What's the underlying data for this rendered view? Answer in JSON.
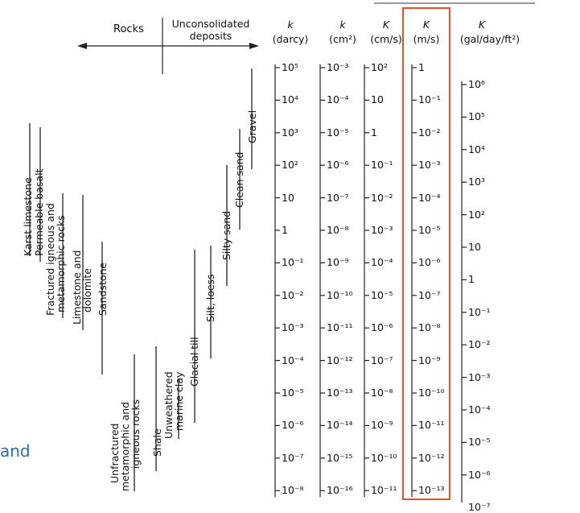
{
  "headers": {
    "rocks": "Rocks",
    "unconsolidated": "Unconsolidated\ndeposits",
    "k_darcy_sym": "k",
    "k_darcy_unit": "(darcy)",
    "k_cm2_sym": "k",
    "k_cm2_unit": "(cm²)",
    "K_cms_sym": "K",
    "K_cms_unit": "(cm/s)",
    "K_ms_sym": "K",
    "K_ms_unit": "(m/s)",
    "K_gal_sym": "K",
    "K_gal_unit": "(gal/day/ft²)"
  },
  "scales": {
    "darcy": [
      "10⁵",
      "10⁴",
      "10³",
      "10²",
      "10",
      "1",
      "10⁻¹",
      "10⁻²",
      "10⁻³",
      "10⁻⁴",
      "10⁻⁵",
      "10⁻⁶",
      "10⁻⁷",
      "10⁻⁸"
    ],
    "cm2": [
      "10⁻³",
      "10⁻⁴",
      "10⁻⁵",
      "10⁻⁶",
      "10⁻⁷",
      "10⁻⁸",
      "10⁻⁹",
      "10⁻¹⁰",
      "10⁻¹¹",
      "10⁻¹²",
      "10⁻¹³",
      "10⁻¹⁴",
      "10⁻¹⁵",
      "10⁻¹⁶"
    ],
    "cms": [
      "10²",
      "10",
      "1",
      "10⁻¹",
      "10⁻²",
      "10⁻³",
      "10⁻⁴",
      "10⁻⁵",
      "10⁻⁶",
      "10⁻⁷",
      "10⁻⁸",
      "10⁻⁹",
      "10⁻¹⁰",
      "10⁻¹¹"
    ],
    "ms": [
      "1",
      "10⁻¹",
      "10⁻²",
      "10⁻³",
      "10⁻⁴",
      "10⁻⁵",
      "10⁻⁶",
      "10⁻⁷",
      "10⁻⁸",
      "10⁻⁹",
      "10⁻¹⁰",
      "10⁻¹¹",
      "10⁻¹²",
      "10⁻¹³"
    ],
    "gal": [
      "10⁶",
      "10⁵",
      "10⁴",
      "10³",
      "10²",
      "10",
      "1",
      "10⁻¹",
      "10⁻²",
      "10⁻³",
      "10⁻⁴",
      "10⁻⁵",
      "10⁻⁶",
      "10⁻⁷"
    ]
  },
  "rock_types": {
    "karst": "Karst limestone",
    "basalt": "Permeable basalt",
    "fractured1": "Fractured igneous and",
    "fractured2": "metamorphic rocks",
    "limestone1": "Limestone and",
    "limestone2": "dolomite",
    "sandstone": "Sandstone",
    "unfractured1": "Unfractured",
    "unfractured2": "metamorphic and",
    "unfractured3": "igneous rocks",
    "shale": "Shale"
  },
  "deposit_types": {
    "weathered1": "Unweathered",
    "weathered2": "marine clay",
    "glacial": "Glacial till",
    "silt": "Silt, loess",
    "silty_sand": "Silty sand",
    "clean_sand": "Clean sand",
    "gravel": "Gravel"
  },
  "fragment": "and",
  "highlight_color": "#e2502c"
}
